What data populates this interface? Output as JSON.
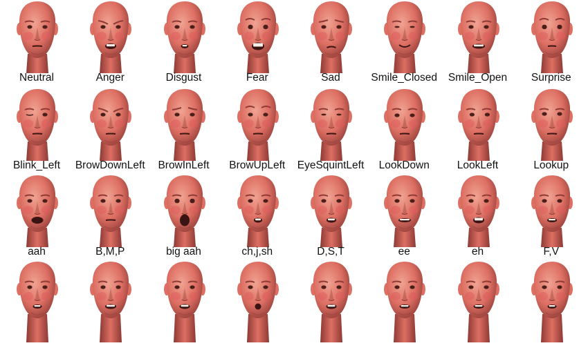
{
  "rows": [
    {
      "labels": [
        "Neutral",
        "Anger",
        "Disgust",
        "Fear",
        "Sad",
        "Smile_Closed",
        "Smile_Open",
        "Surprise"
      ],
      "expressions": [
        "neutral",
        "anger",
        "disgust",
        "fear",
        "sad",
        "smile-closed",
        "smile-open",
        "surprise"
      ]
    },
    {
      "labels": [
        "Blink_Left",
        "BrowDownLeft",
        "BrowInLeft",
        "BrowUpLeft",
        "EyeSquintLeft",
        "LookDown",
        "LookLeft",
        "Lookup"
      ],
      "expressions": [
        "blink",
        "brow-down",
        "brow-in",
        "brow-up",
        "squint",
        "look-down",
        "look-left",
        "look-up"
      ]
    },
    {
      "labels": [
        "aah",
        "B,M,P",
        "big aah",
        "ch,j,sh",
        "D,S,T",
        "ee",
        "eh",
        "F,V"
      ],
      "expressions": [
        "aah",
        "bmp",
        "big-aah",
        "chjsh",
        "dst",
        "ee",
        "eh",
        "fv"
      ]
    },
    {
      "labels": [],
      "expressions": [
        "viseme-a",
        "viseme-b",
        "viseme-c",
        "viseme-d",
        "viseme-e",
        "viseme-f",
        "viseme-g",
        "viseme-h"
      ]
    }
  ],
  "colors": {
    "skin_light": "#f0a392",
    "skin_mid": "#dd6f63",
    "skin_dark": "#8e3a35",
    "mouth_dark": "#3a1412",
    "teeth": "#f4efe9",
    "background": "#ffffff",
    "label_text": "#111111"
  }
}
